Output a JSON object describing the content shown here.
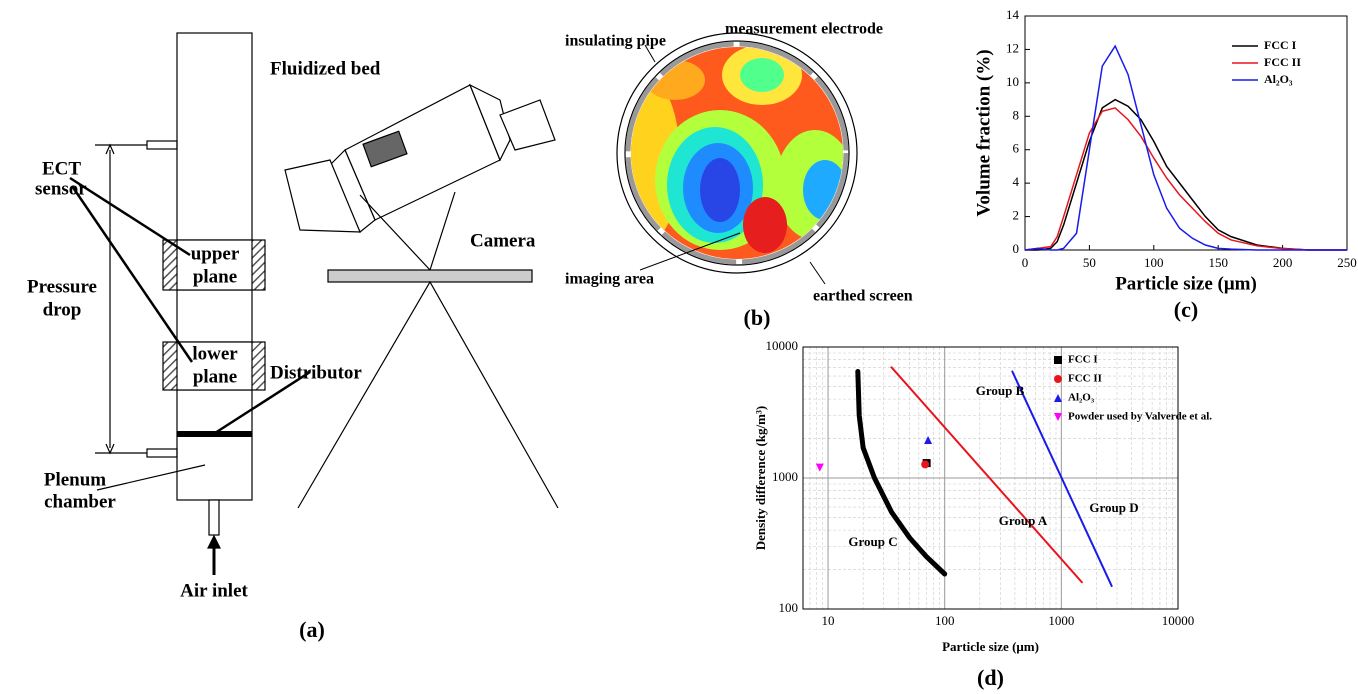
{
  "panel_a": {
    "fluidized_bed": "Fluidized bed",
    "ect_sensor": [
      "ECT",
      "sensor"
    ],
    "upper_plane": [
      "upper",
      "plane"
    ],
    "lower_plane": [
      "lower",
      "plane"
    ],
    "pressure_drop": [
      "Pressure",
      "drop"
    ],
    "distributor": "Distributor",
    "plenum_chamber": [
      "Plenum",
      "chamber"
    ],
    "air_inlet": "Air inlet",
    "camera": "Camera",
    "caption": "(a)"
  },
  "panel_b": {
    "insulating_pipe": "insulating pipe",
    "measurement_electrode": "measurement electrode",
    "imaging_area": "imaging area",
    "earthed_screen": "earthed screen",
    "caption": "(b)"
  },
  "chart_data": [
    {
      "type": "line",
      "caption": "(c)",
      "xlabel": "Particle size (μm)",
      "ylabel": "Volume fraction (%)",
      "x": [
        0,
        10,
        20,
        25,
        30,
        40,
        50,
        60,
        70,
        80,
        90,
        100,
        110,
        120,
        130,
        140,
        150,
        160,
        180,
        200,
        220,
        250
      ],
      "series": [
        {
          "name": "FCC I",
          "color": "#000000",
          "values": [
            0,
            0,
            0.1,
            0.5,
            1.5,
            4,
            6.5,
            8.5,
            9,
            8.6,
            7.8,
            6.5,
            5,
            4,
            3,
            2,
            1.2,
            0.8,
            0.3,
            0.1,
            0,
            0
          ]
        },
        {
          "name": "FCC II",
          "color": "#e8141c",
          "values": [
            0,
            0.1,
            0.2,
            0.8,
            2,
            4.5,
            7,
            8.3,
            8.5,
            7.8,
            6.8,
            5.5,
            4.3,
            3.3,
            2.5,
            1.7,
            1,
            0.6,
            0.25,
            0.08,
            0,
            0
          ]
        },
        {
          "name": "Al₂O₃",
          "color": "#1a1aeb",
          "values": [
            0,
            0.1,
            0,
            0,
            0.1,
            1,
            6,
            11,
            12.2,
            10.5,
            7.5,
            4.5,
            2.5,
            1.3,
            0.7,
            0.3,
            0.1,
            0.05,
            0,
            0,
            0,
            0
          ]
        }
      ],
      "xlim": [
        0,
        250
      ],
      "xticks": [
        0,
        50,
        100,
        150,
        200,
        250
      ],
      "ylim": [
        0,
        14
      ],
      "yticks": [
        0,
        2,
        4,
        6,
        8,
        10,
        12,
        14
      ]
    },
    {
      "type": "scatter",
      "caption": "(d)",
      "xlabel": "Particle size (μm)",
      "ylabel": "Density difference (kg/m³)",
      "xscale": "log",
      "yscale": "log",
      "grid": true,
      "xlim": [
        6.1,
        10000
      ],
      "xticks": [
        10,
        100,
        1000,
        10000
      ],
      "ylim": [
        100,
        10000
      ],
      "yticks": [
        100,
        1000,
        10000
      ],
      "series": [
        {
          "name": "FCC I",
          "color": "#000000",
          "marker": "square",
          "x": [
            70
          ],
          "y": [
            1300
          ]
        },
        {
          "name": "FCC II",
          "color": "#e8141c",
          "marker": "circle",
          "x": [
            68
          ],
          "y": [
            1270
          ]
        },
        {
          "name": "Al₂O₃",
          "color": "#1a1aeb",
          "marker": "triangle-up",
          "x": [
            72
          ],
          "y": [
            1950
          ]
        },
        {
          "name": "Powder used by Valverde et al.",
          "color": "#ff00ff",
          "marker": "triangle-down",
          "x": [
            8.5
          ],
          "y": [
            1200
          ]
        }
      ],
      "curves": [
        {
          "color": "#000000",
          "width": 5,
          "x": [
            18,
            18.5,
            20,
            25,
            35,
            50,
            70,
            100
          ],
          "y": [
            6500,
            3000,
            1700,
            1000,
            550,
            350,
            250,
            185
          ]
        },
        {
          "color": "#e8141c",
          "width": 2,
          "x": [
            35,
            1500
          ],
          "y": [
            7000,
            160
          ]
        },
        {
          "color": "#1a1aeb",
          "width": 2,
          "x": [
            380,
            2700
          ],
          "y": [
            6500,
            150
          ]
        }
      ],
      "annotations": [
        "Group B",
        "Group A",
        "Group C",
        "Group D"
      ]
    }
  ]
}
